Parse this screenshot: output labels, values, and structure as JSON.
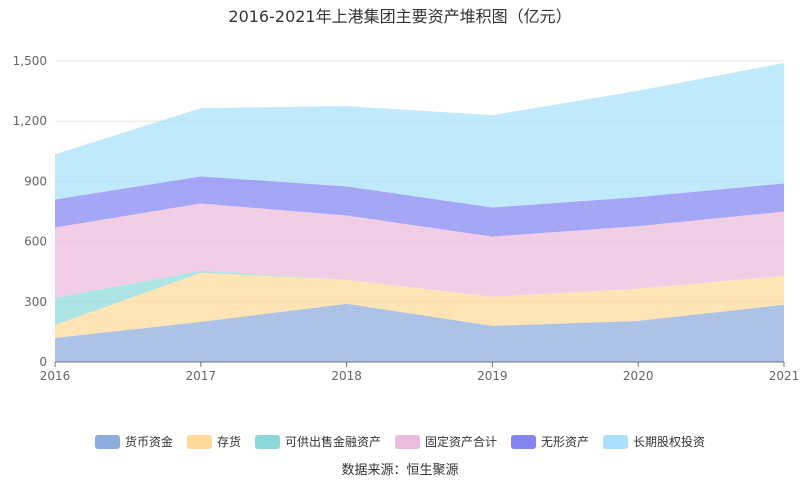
{
  "chart_data": {
    "type": "area",
    "stacked": true,
    "title": "2016-2021年上港集团主要资产堆积图（亿元）",
    "categories": [
      "2016",
      "2017",
      "2018",
      "2019",
      "2020",
      "2021"
    ],
    "ylim": [
      0,
      1500
    ],
    "yticks": [
      "0",
      "300",
      "600",
      "900",
      "1,200",
      "1,500"
    ],
    "grid": true,
    "legend_position": "bottom",
    "series": [
      {
        "name": "货币资金",
        "color": "#8eacdd",
        "values": [
          120,
          200,
          290,
          180,
          205,
          285
        ]
      },
      {
        "name": "存货",
        "color": "#ffd99a",
        "values": [
          65,
          245,
          120,
          145,
          160,
          145
        ]
      },
      {
        "name": "可供出售金融资产",
        "color": "#8dd9d9",
        "values": [
          135,
          10,
          0,
          0,
          0,
          0
        ]
      },
      {
        "name": "固定资产合计",
        "color": "#edbbdc",
        "values": [
          350,
          335,
          320,
          300,
          312,
          320
        ]
      },
      {
        "name": "无形资产",
        "color": "#8383f3",
        "values": [
          140,
          135,
          145,
          145,
          145,
          140
        ]
      },
      {
        "name": "长期股权投资",
        "color": "#a9e0fb",
        "values": [
          225,
          340,
          400,
          460,
          530,
          600
        ]
      }
    ]
  },
  "source": "数据来源：恒生聚源"
}
